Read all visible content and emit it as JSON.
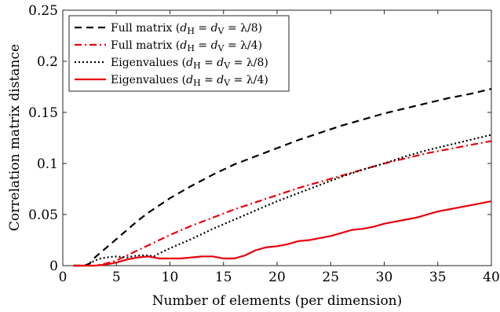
{
  "chart_data": {
    "type": "line",
    "xlabel": "Number of elements (per dimension)",
    "ylabel": "Correlation matrix distance",
    "xlim": [
      0,
      40
    ],
    "ylim": [
      0,
      0.25
    ],
    "xticks": [
      0,
      5,
      10,
      15,
      20,
      25,
      30,
      35,
      40
    ],
    "yticks": [
      0,
      0.05,
      0.1,
      0.15,
      0.2,
      0.25
    ],
    "xtick_labels": [
      "0",
      "5",
      "10",
      "15",
      "20",
      "25",
      "30",
      "35",
      "40"
    ],
    "ytick_labels": [
      "0",
      "0.05",
      "0.1",
      "0.15",
      "0.2",
      "0.25"
    ],
    "grid": false,
    "legend_position": "top-left",
    "series": [
      {
        "name": "Full matrix (d_H = d_V = λ/8)",
        "legend_main": "Full matrix (",
        "legend_var1": "d",
        "legend_sub1": "H",
        "legend_mid": " = ",
        "legend_var2": "d",
        "legend_sub2": "V",
        "legend_tail": " = λ/8)",
        "color": "#000000",
        "style": "dashed",
        "x": [
          1,
          2,
          2.5,
          3,
          4,
          5,
          6,
          7,
          8,
          9,
          10,
          12,
          14,
          16,
          18,
          20,
          22,
          24,
          26,
          28,
          30,
          32,
          34,
          36,
          38,
          40
        ],
        "y": [
          0,
          0,
          0.002,
          0.008,
          0.017,
          0.026,
          0.035,
          0.044,
          0.052,
          0.059,
          0.066,
          0.078,
          0.089,
          0.099,
          0.107,
          0.115,
          0.123,
          0.13,
          0.137,
          0.143,
          0.149,
          0.154,
          0.159,
          0.164,
          0.168,
          0.173
        ]
      },
      {
        "name": "Full matrix (d_H = d_V = λ/4)",
        "legend_main": "Full matrix (",
        "legend_var1": "d",
        "legend_sub1": "H",
        "legend_mid": " = ",
        "legend_var2": "d",
        "legend_sub2": "V",
        "legend_tail": " = λ/4)",
        "color": "#e8000b",
        "style": "dashdot",
        "x": [
          1,
          2,
          3,
          4,
          5,
          6,
          7,
          8,
          9,
          10,
          12,
          14,
          16,
          18,
          20,
          22,
          24,
          26,
          28,
          30,
          32,
          34,
          36,
          38,
          40
        ],
        "y": [
          0,
          0,
          0,
          0.002,
          0.005,
          0.01,
          0.015,
          0.02,
          0.025,
          0.03,
          0.039,
          0.047,
          0.055,
          0.062,
          0.069,
          0.076,
          0.082,
          0.088,
          0.094,
          0.1,
          0.105,
          0.11,
          0.114,
          0.118,
          0.122
        ]
      },
      {
        "name": "Eigenvalues (d_H = d_V = λ/8)",
        "legend_main": "Eigenvalues (",
        "legend_var1": "d",
        "legend_sub1": "H",
        "legend_mid": " = ",
        "legend_var2": "d",
        "legend_sub2": "V",
        "legend_tail": " = λ/8)",
        "color": "#000000",
        "style": "dotted",
        "x": [
          1,
          2,
          2.5,
          3,
          3.5,
          4,
          5,
          6,
          7,
          8,
          8.5,
          9,
          10,
          12,
          14,
          16,
          18,
          20,
          22,
          24,
          26,
          28,
          30,
          32,
          34,
          36,
          38,
          40
        ],
        "y": [
          0,
          0,
          0.002,
          0.005,
          0.007,
          0.008,
          0.009,
          0.008,
          0.01,
          0.01,
          0.009,
          0.012,
          0.017,
          0.026,
          0.036,
          0.045,
          0.054,
          0.063,
          0.071,
          0.079,
          0.087,
          0.094,
          0.1,
          0.107,
          0.113,
          0.118,
          0.123,
          0.128
        ]
      },
      {
        "name": "Eigenvalues (d_H = d_V = λ/4)",
        "legend_main": "Eigenvalues (",
        "legend_var1": "d",
        "legend_sub1": "H",
        "legend_mid": " = ",
        "legend_var2": "d",
        "legend_sub2": "V",
        "legend_tail": " = λ/4)",
        "color": "#e8000b",
        "style": "solid",
        "x": [
          1,
          2,
          3,
          4,
          5,
          6,
          7,
          8,
          9,
          10,
          11,
          12,
          13,
          14,
          15,
          16,
          17,
          18,
          19,
          20,
          21,
          22,
          23,
          24,
          25,
          26,
          27,
          28,
          29,
          30,
          31,
          32,
          33,
          34,
          35,
          36,
          37,
          38,
          39,
          40
        ],
        "y": [
          0,
          0,
          0,
          0.001,
          0.003,
          0.006,
          0.008,
          0.009,
          0.007,
          0.007,
          0.007,
          0.008,
          0.009,
          0.009,
          0.007,
          0.007,
          0.01,
          0.015,
          0.018,
          0.019,
          0.021,
          0.024,
          0.025,
          0.027,
          0.029,
          0.032,
          0.035,
          0.036,
          0.038,
          0.041,
          0.043,
          0.045,
          0.047,
          0.05,
          0.053,
          0.055,
          0.057,
          0.059,
          0.061,
          0.063
        ]
      }
    ]
  }
}
